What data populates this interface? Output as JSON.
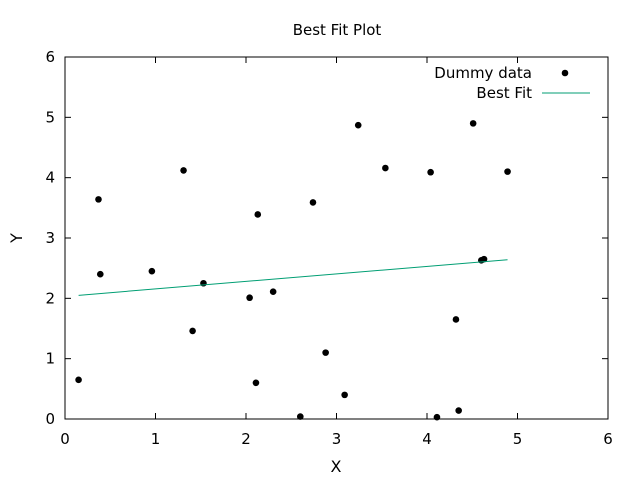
{
  "chart_data": {
    "type": "scatter",
    "title": "Best Fit Plot",
    "xlabel": "X",
    "ylabel": "Y",
    "xlim": [
      0,
      6
    ],
    "ylim": [
      0,
      6
    ],
    "xticks": [
      0,
      1,
      2,
      3,
      4,
      5,
      6
    ],
    "yticks": [
      0,
      1,
      2,
      3,
      4,
      5,
      6
    ],
    "grid": false,
    "legend_position": "top-right",
    "series": [
      {
        "name": "Dummy data",
        "kind": "points",
        "color": "#000000",
        "points": [
          [
            0.15,
            0.65
          ],
          [
            0.37,
            3.64
          ],
          [
            0.39,
            2.4
          ],
          [
            0.96,
            2.45
          ],
          [
            1.31,
            4.12
          ],
          [
            1.41,
            1.46
          ],
          [
            1.53,
            2.25
          ],
          [
            2.04,
            2.01
          ],
          [
            2.11,
            0.6
          ],
          [
            2.13,
            3.39
          ],
          [
            2.3,
            2.11
          ],
          [
            2.6,
            0.04
          ],
          [
            2.74,
            3.59
          ],
          [
            2.88,
            1.1
          ],
          [
            3.09,
            0.4
          ],
          [
            3.24,
            4.87
          ],
          [
            3.54,
            4.16
          ],
          [
            4.04,
            4.09
          ],
          [
            4.11,
            0.03
          ],
          [
            4.32,
            1.65
          ],
          [
            4.35,
            0.14
          ],
          [
            4.51,
            4.9
          ],
          [
            4.6,
            2.63
          ],
          [
            4.63,
            2.65
          ],
          [
            4.89,
            4.1
          ]
        ]
      },
      {
        "name": "Best Fit",
        "kind": "line",
        "color": "#009e73",
        "points": [
          [
            0.15,
            2.05
          ],
          [
            4.89,
            2.64
          ]
        ]
      }
    ]
  }
}
